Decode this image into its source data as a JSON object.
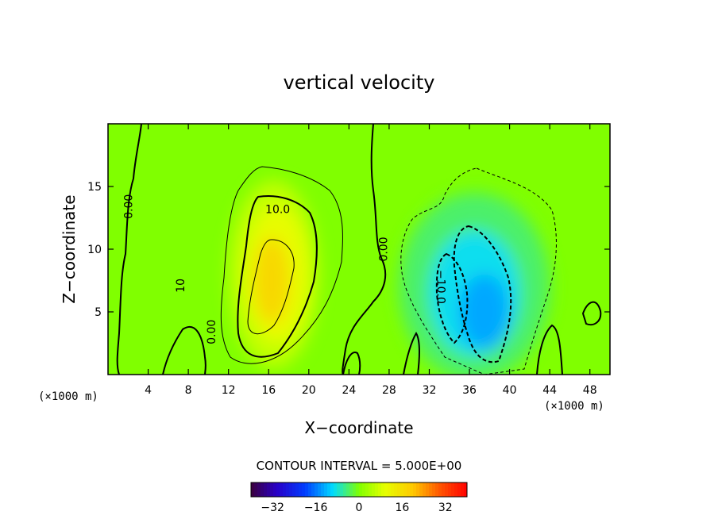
{
  "chart_data": {
    "type": "heatmap",
    "title": "vertical velocity",
    "xlabel": "X−coordinate",
    "ylabel": "Z−coordinate",
    "x_unit": "(×1000 m)",
    "y_unit": "(×1000 m)",
    "xlim": [
      0,
      50
    ],
    "ylim": [
      0,
      20
    ],
    "x_ticks": [
      4,
      8,
      12,
      16,
      20,
      24,
      28,
      32,
      36,
      40,
      44,
      48
    ],
    "y_ticks": [
      5,
      10,
      15
    ],
    "contour_interval_text": "CONTOUR INTERVAL = 5.000E+00",
    "contour_labels": [
      {
        "text": "0.00",
        "x": 2.0,
        "z": 13.4,
        "rotate": -90
      },
      {
        "text": "10.0",
        "x": 16.9,
        "z": 13.2,
        "rotate": 0
      },
      {
        "text": "10",
        "x": 7.2,
        "z": 7.1,
        "rotate": -90
      },
      {
        "text": "0.00",
        "x": 10.3,
        "z": 3.4,
        "rotate": -90
      },
      {
        "text": "0.00",
        "x": 27.4,
        "z": 10.0,
        "rotate": -90
      },
      {
        "text": "−10.0",
        "x": 33.2,
        "z": 7.0,
        "rotate": 90
      }
    ],
    "cells": [
      {
        "x": 16.5,
        "z": 8.0,
        "rx": 4.5,
        "rz": 7.5,
        "w": 6
      },
      {
        "x": 16.8,
        "z": 8.0,
        "rx": 3.2,
        "rz": 5.5,
        "w": 10
      },
      {
        "x": 16.3,
        "z": 7.5,
        "rx": 1.8,
        "rz": 3.5,
        "w": 17
      },
      {
        "x": 36.5,
        "z": 7.0,
        "rx": 7.5,
        "rz": 7.5,
        "w": -4
      },
      {
        "x": 36.5,
        "z": 6.5,
        "rx": 4.5,
        "rz": 5.0,
        "w": -9
      },
      {
        "x": 37.5,
        "z": 5.0,
        "rx": 2.5,
        "rz": 3.0,
        "w": -13
      }
    ],
    "colorbar": {
      "vmin": -40,
      "vmax": 40,
      "ticks": [
        -32,
        -16,
        0,
        16,
        32
      ]
    },
    "colors": {
      "background": "#80ff00",
      "contour_line": "#000000",
      "frame": "#000000"
    }
  }
}
